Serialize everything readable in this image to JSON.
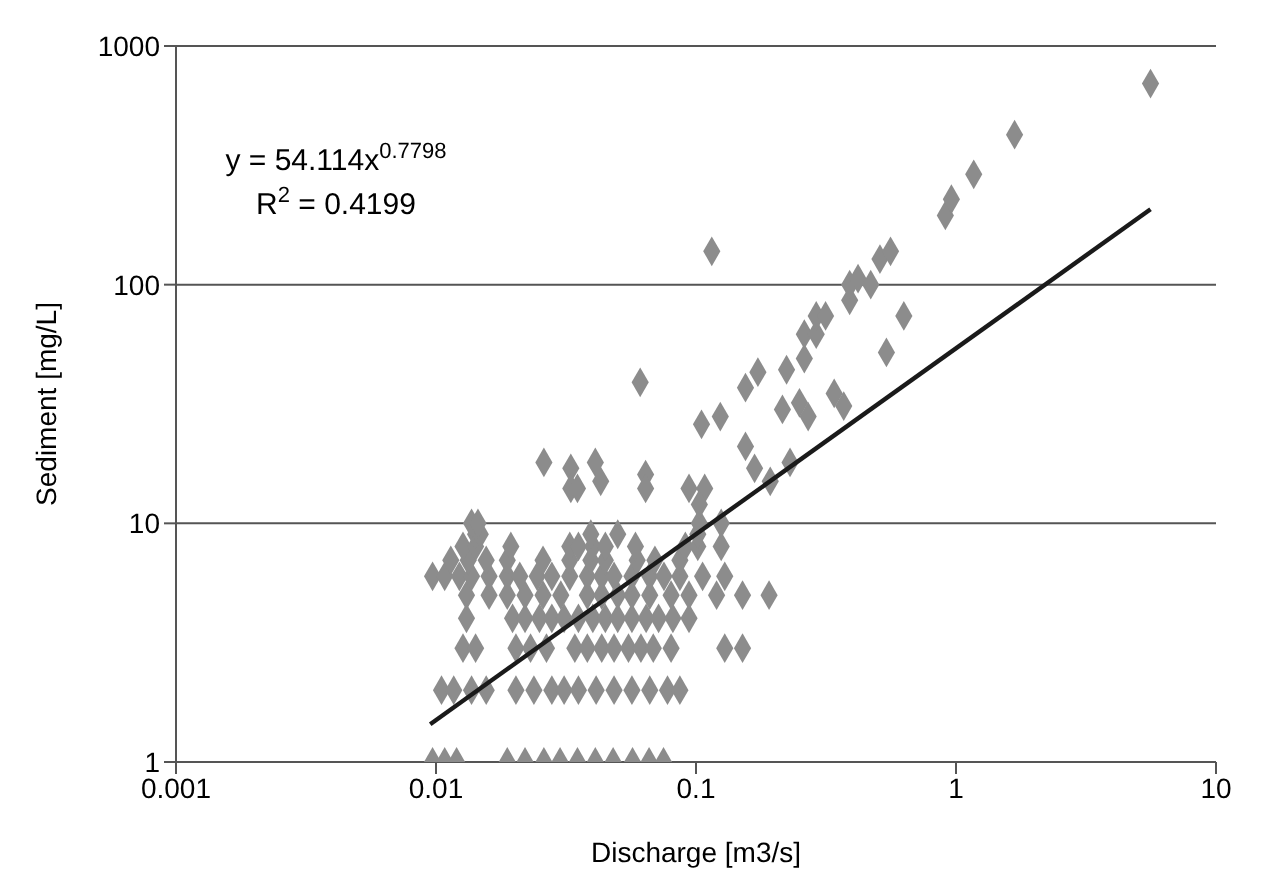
{
  "chart_data": {
    "type": "scatter",
    "xlabel": "Discharge [m3/s]",
    "ylabel": "Sediment [mg/L]",
    "log": "xy",
    "xlim": [
      0.001,
      10
    ],
    "xticks": [
      0.001,
      0.01,
      0.1,
      1,
      10
    ],
    "ylim": [
      1,
      1000
    ],
    "yticks": [
      1,
      10,
      100,
      1000
    ],
    "grid": "y",
    "marker": "diamond",
    "annotations": [
      "y = 54.114x$^{0.7798}$",
      "R$^{2}$ = 0.4199"
    ],
    "series": [
      {
        "color": "#8c8c8c",
        "x": [
          0.0097,
          0.0108,
          0.012,
          0.0188,
          0.022,
          0.026,
          0.03,
          0.035,
          0.041,
          0.048,
          0.057,
          0.066,
          0.075,
          0.0105,
          0.0117,
          0.0137,
          0.0156,
          0.0203,
          0.0238,
          0.0279,
          0.0311,
          0.0353,
          0.0413,
          0.0484,
          0.0567,
          0.0664,
          0.0777,
          0.0867,
          0.0127,
          0.0142,
          0.0203,
          0.0231,
          0.0266,
          0.0342,
          0.0382,
          0.0434,
          0.0484,
          0.055,
          0.0614,
          0.0685,
          0.0802,
          0.129,
          0.151,
          0.0131,
          0.0197,
          0.022,
          0.025,
          0.0279,
          0.0311,
          0.0353,
          0.0401,
          0.0448,
          0.05,
          0.0567,
          0.0643,
          0.0718,
          0.0815,
          0.094,
          0.0131,
          0.016,
          0.0188,
          0.022,
          0.0258,
          0.0302,
          0.0382,
          0.0434,
          0.05,
          0.0567,
          0.0664,
          0.0802,
          0.094,
          0.12,
          0.151,
          0.191,
          0.0097,
          0.0108,
          0.0123,
          0.0137,
          0.016,
          0.0188,
          0.021,
          0.0245,
          0.0279,
          0.0327,
          0.0382,
          0.0434,
          0.0484,
          0.0567,
          0.0664,
          0.0753,
          0.0867,
          0.106,
          0.129,
          0.0114,
          0.0133,
          0.0156,
          0.0188,
          0.0258,
          0.0327,
          0.0394,
          0.0448,
          0.0594,
          0.0695,
          0.0867,
          0.0127,
          0.0142,
          0.0194,
          0.0327,
          0.0353,
          0.0401,
          0.0448,
          0.0585,
          0.091,
          0.1016,
          0.125,
          0.0142,
          0.0148,
          0.0394,
          0.05,
          0.1016,
          0.0137,
          0.0145,
          0.103,
          0.125,
          0.115,
          0.061,
          0.105,
          0.124,
          0.155,
          0.173,
          0.223,
          0.261,
          0.261,
          0.29,
          0.29,
          0.315,
          0.39,
          0.39,
          0.42,
          0.47,
          0.51,
          0.56,
          0.63,
          0.54,
          0.34,
          0.37,
          0.215,
          0.25,
          0.27,
          0.155,
          0.168,
          0.23,
          0.193,
          0.094,
          0.108,
          0.064,
          0.064,
          0.041,
          0.043,
          0.033,
          0.033,
          0.035,
          0.026,
          0.103,
          0.91,
          0.96,
          1.17,
          1.68,
          5.6
        ],
        "values": [
          1,
          1,
          1,
          1,
          1,
          1,
          1,
          1,
          1,
          1,
          1,
          1,
          1,
          2,
          2,
          2,
          2,
          2,
          2,
          2,
          2,
          2,
          2,
          2,
          2,
          2,
          2,
          2,
          3,
          3,
          3,
          3,
          3,
          3,
          3,
          3,
          3,
          3,
          3,
          3,
          3,
          3,
          3,
          4,
          4,
          4,
          4,
          4,
          4,
          4,
          4,
          4,
          4,
          4,
          4,
          4,
          4,
          4,
          5,
          5,
          5,
          5,
          5,
          5,
          5,
          5,
          5,
          5,
          5,
          5,
          5,
          5,
          5,
          5,
          6,
          6,
          6,
          6,
          6,
          6,
          6,
          6,
          6,
          6,
          6,
          6,
          6,
          6,
          6,
          6,
          6,
          6,
          6,
          7,
          7,
          7,
          7,
          7,
          7,
          7,
          7,
          7,
          7,
          7,
          8,
          8,
          8,
          8,
          8,
          8,
          8,
          8,
          8,
          8,
          8,
          9,
          9,
          9,
          9,
          9,
          10,
          10,
          10,
          10,
          138,
          39,
          26,
          28,
          37,
          43,
          44,
          49,
          62,
          62,
          74,
          74,
          86,
          100,
          106,
          100,
          128,
          138,
          74,
          52,
          35,
          31,
          30,
          32,
          28,
          21,
          17,
          18,
          15,
          14,
          14,
          16,
          14,
          18,
          15,
          17,
          14,
          14,
          18,
          12,
          195,
          228,
          290,
          425,
          696
        ]
      },
      {
        "type": "line",
        "color": "#1a1a1a",
        "marker": "none",
        "x": [
          0.0095,
          5.6
        ],
        "values": [
          1.44,
          207
        ]
      }
    ]
  }
}
